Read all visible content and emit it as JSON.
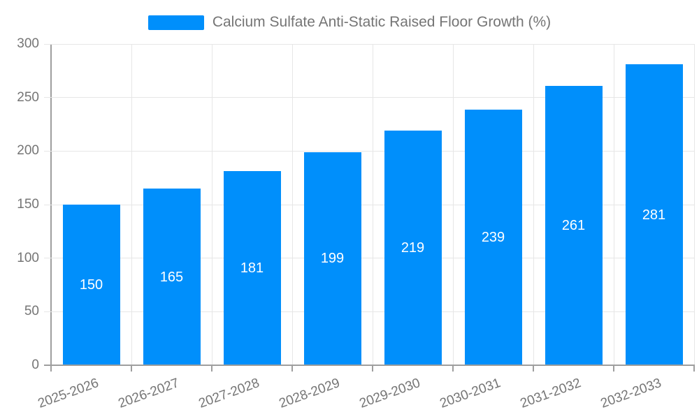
{
  "chart_data": {
    "type": "bar",
    "title": "Calcium Sulfate Anti-Static Raised Floor Growth (%)",
    "legend_position": "top",
    "categories": [
      "2025-2026",
      "2026-2027",
      "2027-2028",
      "2028-2029",
      "2029-2030",
      "2030-2031",
      "2031-2032",
      "2032-2033"
    ],
    "series": [
      {
        "name": "Calcium Sulfate Anti-Static Raised Floor Growth (%)",
        "values": [
          150,
          165,
          181,
          199,
          219,
          239,
          261,
          281
        ]
      }
    ],
    "xlabel": "",
    "ylabel": "",
    "ylim": [
      0,
      300
    ],
    "yticks": [
      0,
      50,
      100,
      150,
      200,
      250,
      300
    ],
    "grid": true,
    "x_label_rotation_deg": -20,
    "colors": {
      "bar": "#008ffb",
      "value_label": "#ffffff",
      "axis_line": "#9e9e9e",
      "gridline": "#e6e6e6",
      "text": "#757575"
    }
  }
}
